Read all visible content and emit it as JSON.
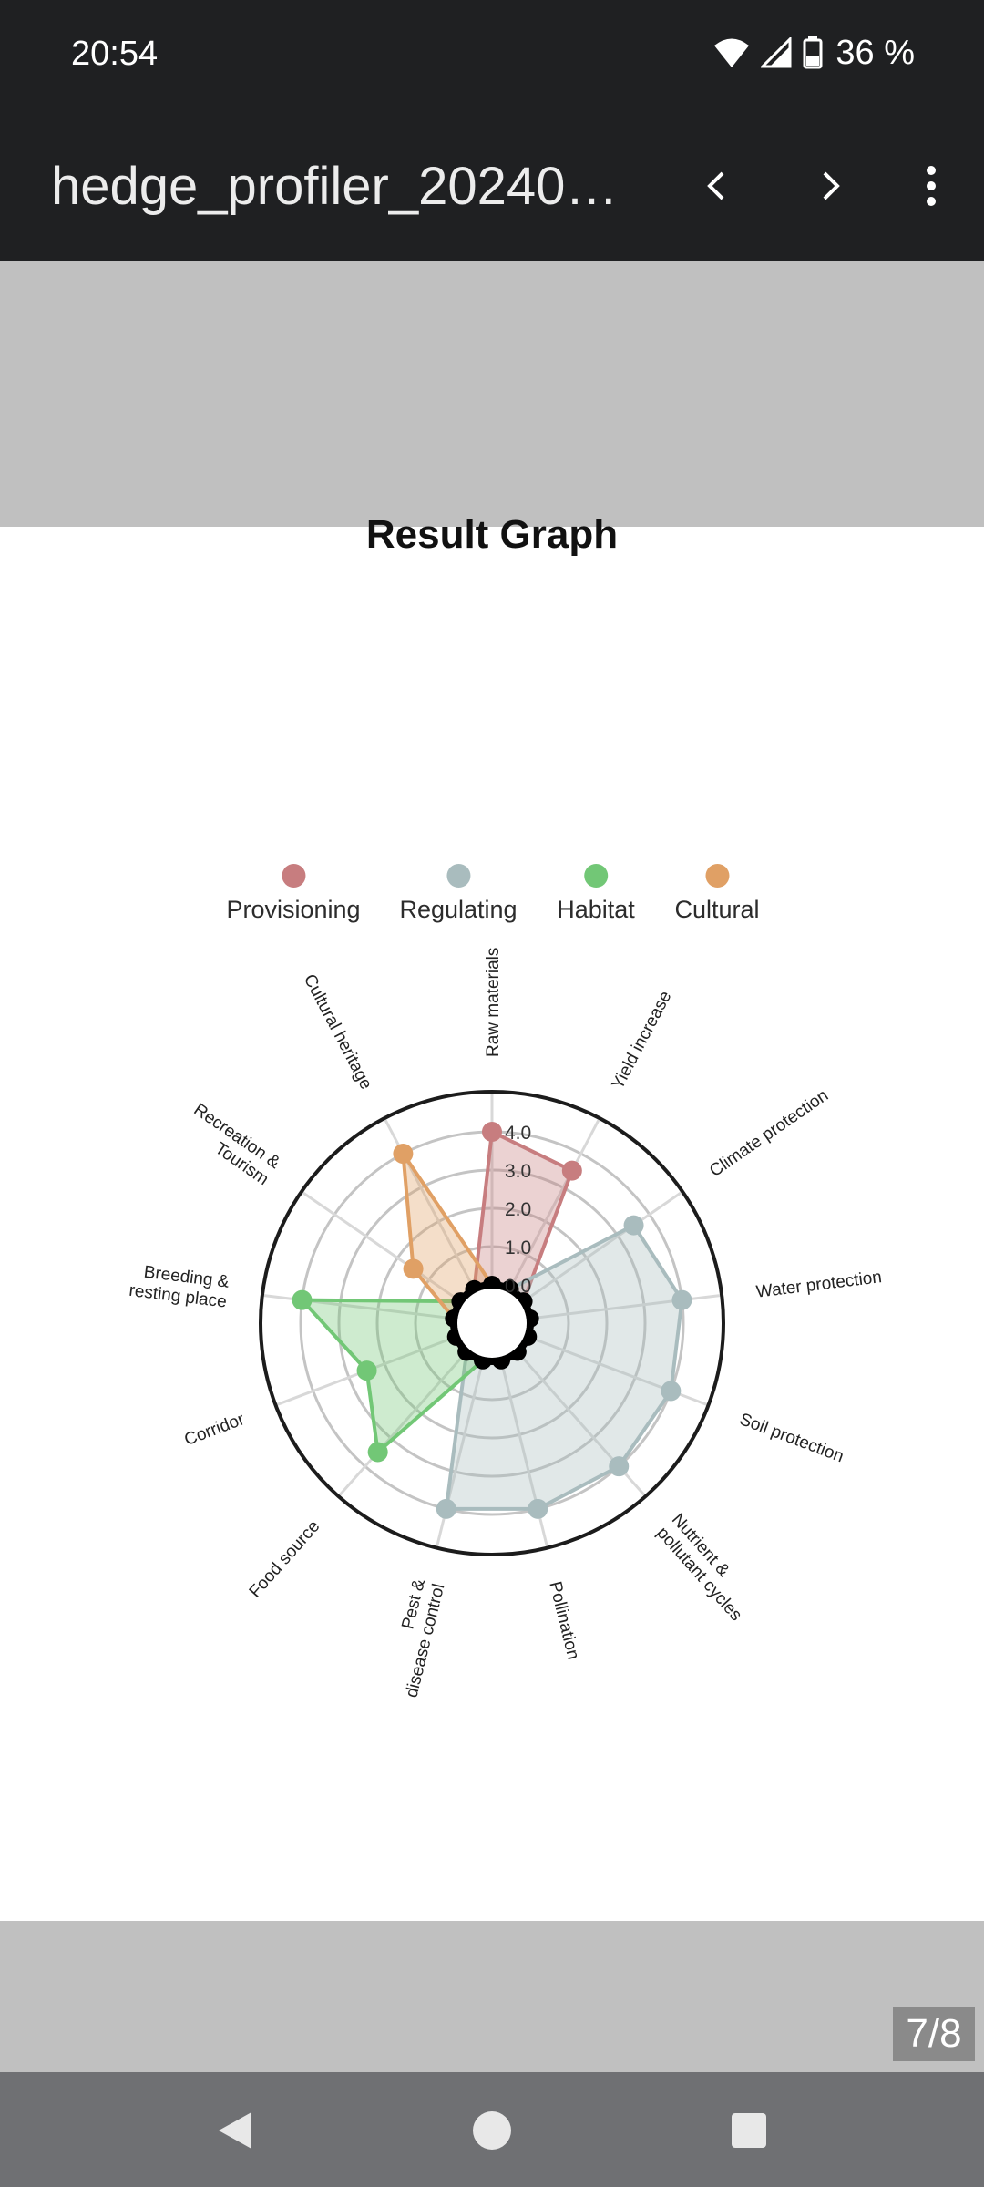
{
  "status_bar": {
    "time": "20:54",
    "battery": "36 %"
  },
  "toolbar": {
    "title": "hedge_profiler_202403..."
  },
  "viewer": {
    "page_indicator": "7/8"
  },
  "chart_data": {
    "type": "radar",
    "title": "Result Graph",
    "ticks": [
      "0.0",
      "1.0",
      "2.0",
      "3.0",
      "4.0"
    ],
    "rlim": [
      0,
      5
    ],
    "axes": [
      "Raw materials",
      "Yield increase",
      "Climate protection",
      "Water protection",
      "Soil protection",
      "Nutrient & pollutant cycles",
      "Pollination",
      "Pest & disease control",
      "Food source",
      "Corridor",
      "Breeding & resting place",
      "Recreation & Tourism",
      "Cultural heritage"
    ],
    "series": [
      {
        "name": "Provisioning",
        "color": "#c77d7f",
        "values": [
          4.0,
          3.5,
          0,
          0,
          0,
          0,
          0,
          0,
          0,
          0,
          0,
          0,
          0
        ]
      },
      {
        "name": "Regulating",
        "color": "#a9bcbe",
        "values": [
          0,
          0,
          3.5,
          4.0,
          4.0,
          4.0,
          4.0,
          4.0,
          0,
          0,
          0,
          0,
          0
        ]
      },
      {
        "name": "Habitat",
        "color": "#72c776",
        "values": [
          0,
          0,
          0,
          0,
          0,
          0,
          0,
          0,
          3.5,
          2.5,
          4.0,
          0,
          0
        ]
      },
      {
        "name": "Cultural",
        "color": "#e0a065",
        "values": [
          0,
          0,
          0,
          0,
          0,
          0,
          0,
          0,
          0,
          0,
          0,
          1.5,
          4.0
        ]
      }
    ],
    "grid": true,
    "legend_position": "top"
  }
}
